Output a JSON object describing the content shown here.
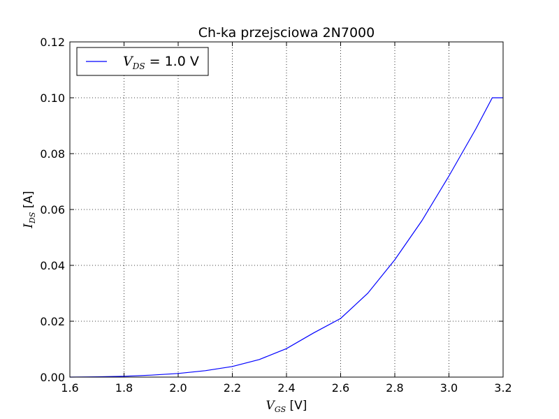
{
  "chart_data": {
    "type": "line",
    "title": "Ch-ka przejsciowa 2N7000",
    "xlabel": {
      "symbol": "V",
      "sub": "GS",
      "unit": "[V]"
    },
    "ylabel": {
      "symbol": "I",
      "sub": "DS",
      "unit": "[A]"
    },
    "xlim": [
      1.6,
      3.2
    ],
    "ylim": [
      0.0,
      0.12
    ],
    "x_ticks": [
      "1.6",
      "1.8",
      "2.0",
      "2.2",
      "2.4",
      "2.6",
      "2.8",
      "3.0",
      "3.2"
    ],
    "y_ticks": [
      "0.00",
      "0.02",
      "0.04",
      "0.06",
      "0.08",
      "0.10",
      "0.12"
    ],
    "grid": true,
    "legend_position": "top-left",
    "series": [
      {
        "name": {
          "symbol": "V",
          "sub": "DS",
          "rest": " = 1.0 V"
        },
        "color": "#0000ff",
        "x": [
          1.6,
          1.7,
          1.8,
          1.9,
          2.0,
          2.1,
          2.2,
          2.3,
          2.4,
          2.5,
          2.6,
          2.7,
          2.8,
          2.9,
          3.0,
          3.1,
          3.16,
          3.2
        ],
        "y": [
          0.0,
          0.0001,
          0.0003,
          0.0007,
          0.0013,
          0.0023,
          0.0038,
          0.0063,
          0.0102,
          0.0158,
          0.021,
          0.03,
          0.042,
          0.056,
          0.072,
          0.089,
          0.1,
          0.1
        ]
      }
    ]
  }
}
